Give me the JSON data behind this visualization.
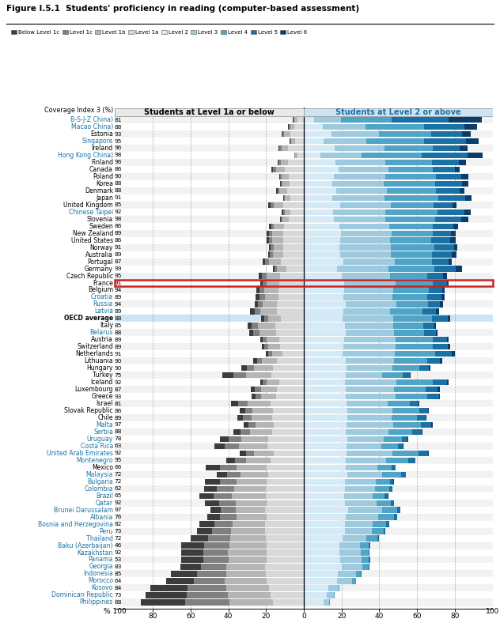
{
  "title": "Figure I.5.1  Students' proficiency in reading (computer-based assessment)",
  "legend_labels": [
    "Below Level 1c",
    "Level 1c",
    "Level 1b",
    "Level 1a",
    "Level 2",
    "Level 3",
    "Level 4",
    "Level 5",
    "Level 6"
  ],
  "legend_colors": [
    "#3c3c3c",
    "#808080",
    "#b5b5b5",
    "#d8d8d8",
    "#d5eaf7",
    "#9ecae0",
    "#4fa4c8",
    "#1a72a4",
    "#0a3d6b"
  ],
  "col_header_left": "Students at Level 1a or below",
  "col_header_right": "Students at Level 2 or above",
  "countries": [
    "B-S-J-Z China)",
    "Macao China)",
    "Estonia",
    "Singapore",
    "Ireland",
    "Hong Kong China)",
    "Finland",
    "Canada",
    "Poland",
    "Korea",
    "Denmark",
    "Japan",
    "United Kingdom",
    "Chinese Taipei",
    "Slovenia",
    "Sweden",
    "New Zealand",
    "United States",
    "Norway",
    "Australia",
    "Portugal",
    "Germany",
    "Czech Republic",
    "France",
    "Belgium",
    "Croatia",
    "Russia",
    "Latvia",
    "OECD average",
    "Italy",
    "Belarus",
    "Austria",
    "Switzerland",
    "Netherlands",
    "Lithuania",
    "Hungary",
    "Turkey",
    "Iceland",
    "Luxembourg",
    "Greece",
    "Israel",
    "Slovak Republic",
    "Chile",
    "Malta",
    "Serbia",
    "Uruguay",
    "Costa Rica",
    "United Arab Emirates",
    "Montenegro",
    "Mexico",
    "Malaysia",
    "Bulgaria",
    "Colombia",
    "Brazil",
    "Qatar",
    "Brunei Darussalam",
    "Albania",
    "Bosnia and Herzegovina",
    "Peru",
    "Thailand",
    "Baku (Azerbaijan)",
    "Kazakhstan",
    "Panama",
    "Georgia",
    "Indonesia",
    "Morocco",
    "Kosovo",
    "Dominican Republic",
    "Philippines"
  ],
  "coverage": [
    81,
    88,
    93,
    95,
    96,
    98,
    96,
    86,
    90,
    88,
    88,
    91,
    85,
    92,
    98,
    86,
    89,
    86,
    91,
    89,
    87,
    99,
    95,
    91,
    94,
    89,
    94,
    89,
    88,
    85,
    88,
    89,
    89,
    91,
    90,
    90,
    75,
    92,
    87,
    93,
    81,
    86,
    89,
    97,
    88,
    78,
    63,
    92,
    95,
    66,
    72,
    72,
    62,
    65,
    92,
    97,
    76,
    82,
    73,
    72,
    46,
    92,
    53,
    83,
    85,
    64,
    84,
    73,
    68
  ],
  "partner_countries": [
    "B-S-J-Z China)",
    "Macao China)",
    "Singapore",
    "Hong Kong China)",
    "Chinese Taipei",
    "Croatia",
    "Russia",
    "Latvia",
    "Belarus",
    "Malta",
    "Serbia",
    "Uruguay",
    "Costa Rica",
    "United Arab Emirates",
    "Montenegro",
    "Malaysia",
    "Bulgaria",
    "Colombia",
    "Brazil",
    "Qatar",
    "Brunei Darussalam",
    "Albania",
    "Bosnia and Herzegovina",
    "Peru",
    "Thailand",
    "Baku (Azerbaijan)",
    "Kazakhstan",
    "Panama",
    "Georgia",
    "Indonesia",
    "Morocco",
    "Kosovo",
    "Dominican Republic",
    "Philippines"
  ],
  "france_idx": 23,
  "oecd_idx": 28,
  "data": [
    [
      0.3,
      0.4,
      1.5,
      3.5,
      5.3,
      14.5,
      26.6,
      30.5,
      17.4
    ],
    [
      0.4,
      0.6,
      2.1,
      5.2,
      10.2,
      22.6,
      30.9,
      21.4,
      6.6
    ],
    [
      0.5,
      0.8,
      3.1,
      7.3,
      14.5,
      25.3,
      27.6,
      16.4,
      4.5
    ],
    [
      0.4,
      0.5,
      1.8,
      4.7,
      10.6,
      22.7,
      30.4,
      22.1,
      6.8
    ],
    [
      0.6,
      1.0,
      3.6,
      8.2,
      16.4,
      26.2,
      25.7,
      14.5,
      3.8
    ],
    [
      0.3,
      0.3,
      1.2,
      3.3,
      9.0,
      21.6,
      31.9,
      24.4,
      8.0
    ],
    [
      0.7,
      1.0,
      3.7,
      8.5,
      16.8,
      26.3,
      24.7,
      14.2,
      4.1
    ],
    [
      1.0,
      1.5,
      4.9,
      9.9,
      18.5,
      26.5,
      23.4,
      11.5,
      2.8
    ],
    [
      0.6,
      0.8,
      3.5,
      8.1,
      15.8,
      27.6,
      26.5,
      13.6,
      3.5
    ],
    [
      0.6,
      0.8,
      3.5,
      7.7,
      15.2,
      27.1,
      27.3,
      14.1,
      3.7
    ],
    [
      0.7,
      1.1,
      4.0,
      8.9,
      17.1,
      27.0,
      25.8,
      12.6,
      2.8
    ],
    [
      0.5,
      0.6,
      2.8,
      7.1,
      15.1,
      27.8,
      28.3,
      14.3,
      3.5
    ],
    [
      1.2,
      1.6,
      5.4,
      10.7,
      19.2,
      26.9,
      22.6,
      10.3,
      2.1
    ],
    [
      0.6,
      0.8,
      2.9,
      7.3,
      15.6,
      27.4,
      28.0,
      14.2,
      3.2
    ],
    [
      0.7,
      0.9,
      3.3,
      7.8,
      15.9,
      27.1,
      26.5,
      14.1,
      3.7
    ],
    [
      1.1,
      1.5,
      5.2,
      10.5,
      18.7,
      26.7,
      22.9,
      10.8,
      2.6
    ],
    [
      1.1,
      1.8,
      5.8,
      11.0,
      19.7,
      27.0,
      21.5,
      9.9,
      2.2
    ],
    [
      1.2,
      1.8,
      5.7,
      11.0,
      19.3,
      26.6,
      21.5,
      10.0,
      2.9
    ],
    [
      1.1,
      1.5,
      5.2,
      10.7,
      18.9,
      27.2,
      22.9,
      10.6,
      1.9
    ],
    [
      1.1,
      1.7,
      5.5,
      10.7,
      19.4,
      26.8,
      21.8,
      10.3,
      2.7
    ],
    [
      1.3,
      2.0,
      6.3,
      12.2,
      21.0,
      27.2,
      19.9,
      8.5,
      1.6
    ],
    [
      0.9,
      1.3,
      4.7,
      9.4,
      17.7,
      27.0,
      24.3,
      11.6,
      3.1
    ],
    [
      1.8,
      2.4,
      7.0,
      12.7,
      20.2,
      25.6,
      19.6,
      8.6,
      2.1
    ],
    [
      1.4,
      2.0,
      6.8,
      12.9,
      21.5,
      27.3,
      19.7,
      7.6,
      0.8
    ],
    [
      1.8,
      2.5,
      7.4,
      13.5,
      21.4,
      26.0,
      18.7,
      7.2,
      1.5
    ],
    [
      2.0,
      2.7,
      7.5,
      13.2,
      20.9,
      26.2,
      18.5,
      7.5,
      1.5
    ],
    [
      1.7,
      2.5,
      7.7,
      14.2,
      22.4,
      26.7,
      16.8,
      6.4,
      1.6
    ],
    [
      2.4,
      3.2,
      8.6,
      14.3,
      21.1,
      24.8,
      16.9,
      7.1,
      1.6
    ],
    [
      1.5,
      2.1,
      6.6,
      12.3,
      20.5,
      26.8,
      20.5,
      8.5,
      1.2
    ],
    [
      2.4,
      3.3,
      9.0,
      15.2,
      22.0,
      25.4,
      16.0,
      5.8,
      0.9
    ],
    [
      2.3,
      3.2,
      8.8,
      14.8,
      22.2,
      25.5,
      16.2,
      6.2,
      0.8
    ],
    [
      1.5,
      2.2,
      6.7,
      12.8,
      21.2,
      27.6,
      19.6,
      7.5,
      0.9
    ],
    [
      1.5,
      2.0,
      6.3,
      12.5,
      21.0,
      27.5,
      20.0,
      8.0,
      1.2
    ],
    [
      1.3,
      1.8,
      5.6,
      11.3,
      20.4,
      27.8,
      21.3,
      8.8,
      1.7
    ],
    [
      1.8,
      2.6,
      8.1,
      14.1,
      22.1,
      25.8,
      17.6,
      6.7,
      1.2
    ],
    [
      2.7,
      3.8,
      10.2,
      16.3,
      22.5,
      24.3,
      14.5,
      5.1,
      0.6
    ],
    [
      5.9,
      6.8,
      13.2,
      17.3,
      22.1,
      19.6,
      10.9,
      3.7,
      0.5
    ],
    [
      1.4,
      2.1,
      6.7,
      13.0,
      21.7,
      27.2,
      19.4,
      7.7,
      0.8
    ],
    [
      2.1,
      3.1,
      8.4,
      14.4,
      22.1,
      25.8,
      16.7,
      6.4,
      1.0
    ],
    [
      2.0,
      2.9,
      8.3,
      14.5,
      22.3,
      26.2,
      17.0,
      6.1,
      0.7
    ],
    [
      3.8,
      5.3,
      12.2,
      17.4,
      22.6,
      21.8,
      12.0,
      4.3,
      0.6
    ],
    [
      2.8,
      4.0,
      10.6,
      16.5,
      23.0,
      23.9,
      14.4,
      4.4,
      0.4
    ],
    [
      3.0,
      4.4,
      10.9,
      16.9,
      23.1,
      23.6,
      13.3,
      4.5,
      0.3
    ],
    [
      2.6,
      3.6,
      9.8,
      15.8,
      22.5,
      24.8,
      14.8,
      5.4,
      0.7
    ],
    [
      3.8,
      5.0,
      11.6,
      16.7,
      22.4,
      22.3,
      12.8,
      4.8,
      0.6
    ],
    [
      4.9,
      6.7,
      14.0,
      18.9,
      23.0,
      19.3,
      9.8,
      3.0,
      0.4
    ],
    [
      5.4,
      7.3,
      15.2,
      19.3,
      22.7,
      18.2,
      9.0,
      2.7,
      0.2
    ],
    [
      3.2,
      4.4,
      10.3,
      16.0,
      22.7,
      24.3,
      14.0,
      4.7,
      0.4
    ],
    [
      4.6,
      5.9,
      12.9,
      17.6,
      22.3,
      21.3,
      11.7,
      3.7,
      0.0
    ],
    [
      7.2,
      8.9,
      16.1,
      19.6,
      22.2,
      16.7,
      7.7,
      1.9,
      0.0
    ],
    [
      5.5,
      7.0,
      14.5,
      19.0,
      22.9,
      18.7,
      9.8,
      2.8,
      0.0
    ],
    [
      7.7,
      8.9,
      16.2,
      19.5,
      22.0,
      16.0,
      7.8,
      1.7,
      0.2
    ],
    [
      7.0,
      9.0,
      16.8,
      20.1,
      22.0,
      15.7,
      7.5,
      1.8,
      0.1
    ],
    [
      7.5,
      9.7,
      17.7,
      20.3,
      21.6,
      14.8,
      6.5,
      1.7,
      0.2
    ],
    [
      7.3,
      8.8,
      16.5,
      19.6,
      22.0,
      16.6,
      7.6,
      1.6,
      0.0
    ],
    [
      5.8,
      7.6,
      15.8,
      20.4,
      23.5,
      17.9,
      8.0,
      1.6,
      0.0
    ],
    [
      6.8,
      8.5,
      16.1,
      19.7,
      22.4,
      17.0,
      8.2,
      1.9,
      0.0
    ],
    [
      8.0,
      9.5,
      17.4,
      20.5,
      21.9,
      14.8,
      7.1,
      1.4,
      0.0
    ],
    [
      8.3,
      9.9,
      17.9,
      20.6,
      21.7,
      14.2,
      6.5,
      1.0,
      0.0
    ],
    [
      9.5,
      11.4,
      18.9,
      20.2,
      20.6,
      12.7,
      5.5,
      1.0,
      0.2
    ],
    [
      12.3,
      13.6,
      19.7,
      19.5,
      18.9,
      11.0,
      4.6,
      0.8,
      0.0
    ],
    [
      11.8,
      13.1,
      20.4,
      19.8,
      19.0,
      11.0,
      4.2,
      0.7,
      0.0
    ],
    [
      11.7,
      13.3,
      20.1,
      19.8,
      19.3,
      11.4,
      3.9,
      0.5,
      0.0
    ],
    [
      10.9,
      13.4,
      20.5,
      20.5,
      20.2,
      10.8,
      3.4,
      0.3,
      0.0
    ],
    [
      13.9,
      15.4,
      21.3,
      19.9,
      18.1,
      9.5,
      2.7,
      0.2,
      0.0
    ],
    [
      14.6,
      16.4,
      22.1,
      19.6,
      17.5,
      8.2,
      1.8,
      0.0,
      0.0
    ],
    [
      19.8,
      20.5,
      22.6,
      18.3,
      13.1,
      5.2,
      0.6,
      0.0,
      0.0
    ],
    [
      21.5,
      21.8,
      22.6,
      17.7,
      12.1,
      3.9,
      0.4,
      0.0,
      0.0
    ],
    [
      23.6,
      23.5,
      22.7,
      16.5,
      10.4,
      3.1,
      0.2,
      0.0,
      0.0
    ]
  ]
}
